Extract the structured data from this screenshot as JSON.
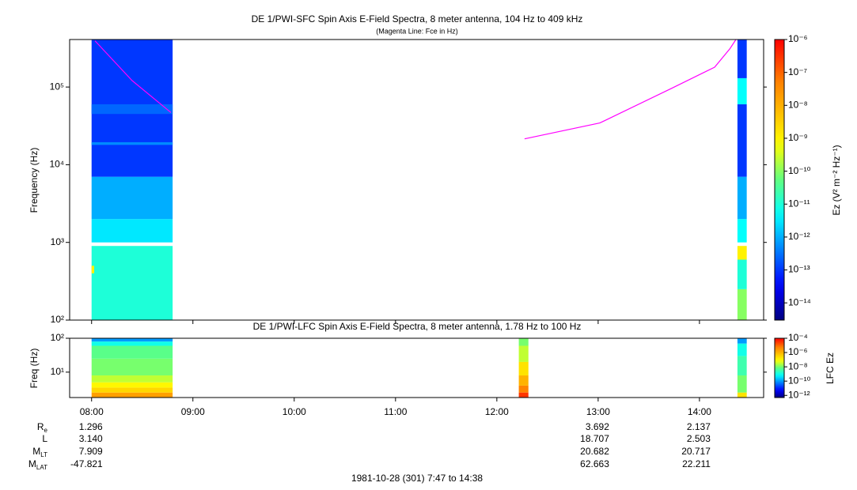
{
  "chart_data": [
    {
      "type": "spectrogram",
      "title": "DE 1/PWI-SFC  Spin Axis E-Field Spectra, 8 meter antenna, 104 Hz to 409 kHz",
      "subtitle": "(Magenta Line: Fce in Hz)",
      "ylabel": "Frequency (Hz)",
      "log_y": true,
      "xlim": [
        467,
        878
      ],
      "ylim": [
        100,
        409000
      ],
      "yticks": [
        {
          "value": 100,
          "label": "10²"
        },
        {
          "value": 1000,
          "label": "10³"
        },
        {
          "value": 10000,
          "label": "10⁴"
        },
        {
          "value": 100000,
          "label": "10⁵"
        }
      ],
      "cells": [
        {
          "t": [
            480,
            528
          ],
          "f": [
            100,
            900
          ],
          "v": 1e-11
        },
        {
          "t": [
            480,
            481.5
          ],
          "f": [
            400,
            500
          ],
          "v": 1e-09
        },
        {
          "t": [
            480,
            528
          ],
          "f": [
            1000,
            2000
          ],
          "v": 3e-12
        },
        {
          "t": [
            480,
            528
          ],
          "f": [
            2000,
            7000
          ],
          "v": 1e-12
        },
        {
          "t": [
            480,
            528
          ],
          "f": [
            7000,
            409000
          ],
          "v": 1e-13
        },
        {
          "t": [
            480,
            528
          ],
          "f": [
            18000,
            19500
          ],
          "v": 5e-13
        },
        {
          "t": [
            480,
            528
          ],
          "f": [
            45000,
            60000
          ],
          "v": 2.5e-13
        },
        {
          "t": [
            862.5,
            868
          ],
          "f": [
            100,
            250
          ],
          "v": 1e-10
        },
        {
          "t": [
            862.5,
            868
          ],
          "f": [
            250,
            600
          ],
          "v": 1e-11
        },
        {
          "t": [
            862.5,
            868
          ],
          "f": [
            600,
            900
          ],
          "v": 1e-09
        },
        {
          "t": [
            862.5,
            868
          ],
          "f": [
            1000,
            2000
          ],
          "v": 5e-12
        },
        {
          "t": [
            862.5,
            868
          ],
          "f": [
            2000,
            7000
          ],
          "v": 1e-12
        },
        {
          "t": [
            862.5,
            868
          ],
          "f": [
            7000,
            60000
          ],
          "v": 1e-13
        },
        {
          "t": [
            862.5,
            868
          ],
          "f": [
            60000,
            130000
          ],
          "v": 5e-12
        },
        {
          "t": [
            862.5,
            868
          ],
          "f": [
            130000,
            409000
          ],
          "v": 1e-13
        }
      ],
      "line": {
        "color": "#ff00ff",
        "x": [
          482,
          504,
          527,
          null,
          736.4,
          781,
          823,
          849,
          858,
          861.6
        ],
        "values": [
          394000,
          121000,
          47000,
          null,
          21500,
          34500,
          95000,
          180000,
          310000,
          409000
        ]
      },
      "colorbar": {
        "label": "Ez (V² m⁻² Hz⁻¹)",
        "log": true,
        "zlim": [
          3e-15,
          1e-06
        ],
        "zticks": [
          {
            "value": 1e-06,
            "label": "10⁻⁶"
          },
          {
            "value": 1e-07,
            "label": "10⁻⁷"
          },
          {
            "value": 1e-08,
            "label": "10⁻⁸"
          },
          {
            "value": 1e-09,
            "label": "10⁻⁹"
          },
          {
            "value": 1e-10,
            "label": "10⁻¹⁰"
          },
          {
            "value": 1e-11,
            "label": "10⁻¹¹"
          },
          {
            "value": 1e-12,
            "label": "10⁻¹²"
          },
          {
            "value": 1e-13,
            "label": "10⁻¹³"
          },
          {
            "value": 1e-14,
            "label": "10⁻¹⁴"
          }
        ]
      }
    },
    {
      "type": "spectrogram",
      "title": "DE 1/PWI-LFC  Spin Axis E-Field Spectra, 8 meter antenna, 1.78 Hz to 100 Hz",
      "ylabel": "Freq (Hz)",
      "log_y": true,
      "xlim": [
        467,
        878
      ],
      "xticks": [
        {
          "value": 480,
          "label": "08:00"
        },
        {
          "value": 540,
          "label": "09:00"
        },
        {
          "value": 600,
          "label": "10:00"
        },
        {
          "value": 660,
          "label": "11:00"
        },
        {
          "value": 720,
          "label": "12:00"
        },
        {
          "value": 780,
          "label": "13:00"
        },
        {
          "value": 840,
          "label": "14:00"
        }
      ],
      "ylim": [
        1.78,
        100
      ],
      "yticks": [
        {
          "value": 10,
          "label": "10¹"
        },
        {
          "value": 100,
          "label": "10²"
        }
      ],
      "cells": [
        {
          "t": [
            480,
            528
          ],
          "f": [
            1.78,
            2.5
          ],
          "v": 2e-06
        },
        {
          "t": [
            480,
            528
          ],
          "f": [
            2.5,
            3.5
          ],
          "v": 3e-07
        },
        {
          "t": [
            480,
            528
          ],
          "f": [
            3.5,
            5
          ],
          "v": 1e-07
        },
        {
          "t": [
            480,
            528
          ],
          "f": [
            5,
            8
          ],
          "v": 3e-08
        },
        {
          "t": [
            480,
            528
          ],
          "f": [
            8,
            25
          ],
          "v": 1e-08
        },
        {
          "t": [
            480,
            528
          ],
          "f": [
            25,
            60
          ],
          "v": 6e-09
        },
        {
          "t": [
            480,
            528
          ],
          "f": [
            60,
            80
          ],
          "v": 1e-09
        },
        {
          "t": [
            480,
            528
          ],
          "f": [
            80,
            100
          ],
          "v": 1e-10
        },
        {
          "t": [
            733,
            738.7
          ],
          "f": [
            1.78,
            2.5
          ],
          "v": 3e-05
        },
        {
          "t": [
            733,
            738.7
          ],
          "f": [
            2.5,
            4
          ],
          "v": 5e-06
        },
        {
          "t": [
            733,
            738.7
          ],
          "f": [
            4,
            8
          ],
          "v": 1e-06
        },
        {
          "t": [
            733,
            738.7
          ],
          "f": [
            8,
            20
          ],
          "v": 2e-07
        },
        {
          "t": [
            733,
            738.7
          ],
          "f": [
            20,
            60
          ],
          "v": 3e-08
        },
        {
          "t": [
            733,
            738.7
          ],
          "f": [
            60,
            100
          ],
          "v": 1e-08
        },
        {
          "t": [
            862.5,
            868
          ],
          "f": [
            1.78,
            2.5
          ],
          "v": 2e-07
        },
        {
          "t": [
            862.5,
            868
          ],
          "f": [
            2.5,
            8
          ],
          "v": 1e-08
        },
        {
          "t": [
            862.5,
            868
          ],
          "f": [
            8,
            30
          ],
          "v": 3e-09
        },
        {
          "t": [
            862.5,
            868
          ],
          "f": [
            30,
            70
          ],
          "v": 1e-09
        },
        {
          "t": [
            862.5,
            868
          ],
          "f": [
            70,
            100
          ],
          "v": 1e-10
        }
      ],
      "colorbar": {
        "label": "LFC Ez",
        "log": true,
        "zlim": [
          5e-13,
          0.0001
        ],
        "zticks": [
          {
            "value": 0.0001,
            "label": "10⁻⁴"
          },
          {
            "value": 1e-06,
            "label": "10⁻⁶"
          },
          {
            "value": 1e-08,
            "label": "10⁻⁸"
          },
          {
            "value": 1e-10,
            "label": "10⁻¹⁰"
          },
          {
            "value": 1e-12,
            "label": "10⁻¹²"
          }
        ]
      }
    }
  ],
  "ephemeris": {
    "rows": [
      {
        "label": "R",
        "sub": "e",
        "values": [
          "1.296",
          null,
          null,
          null,
          null,
          "3.692",
          "2.137"
        ]
      },
      {
        "label": "L",
        "values": [
          "3.140",
          null,
          null,
          null,
          null,
          "18.707",
          "2.503"
        ]
      },
      {
        "label": "M",
        "sub": "LT",
        "values": [
          "7.909",
          null,
          null,
          null,
          null,
          "20.682",
          "20.717"
        ]
      },
      {
        "label": "M",
        "sub": "LAT",
        "values": [
          "-47.821",
          null,
          null,
          null,
          null,
          "62.663",
          "22.211"
        ]
      }
    ]
  },
  "footer": "1981-10-28 (301) 7:47 to 14:38"
}
